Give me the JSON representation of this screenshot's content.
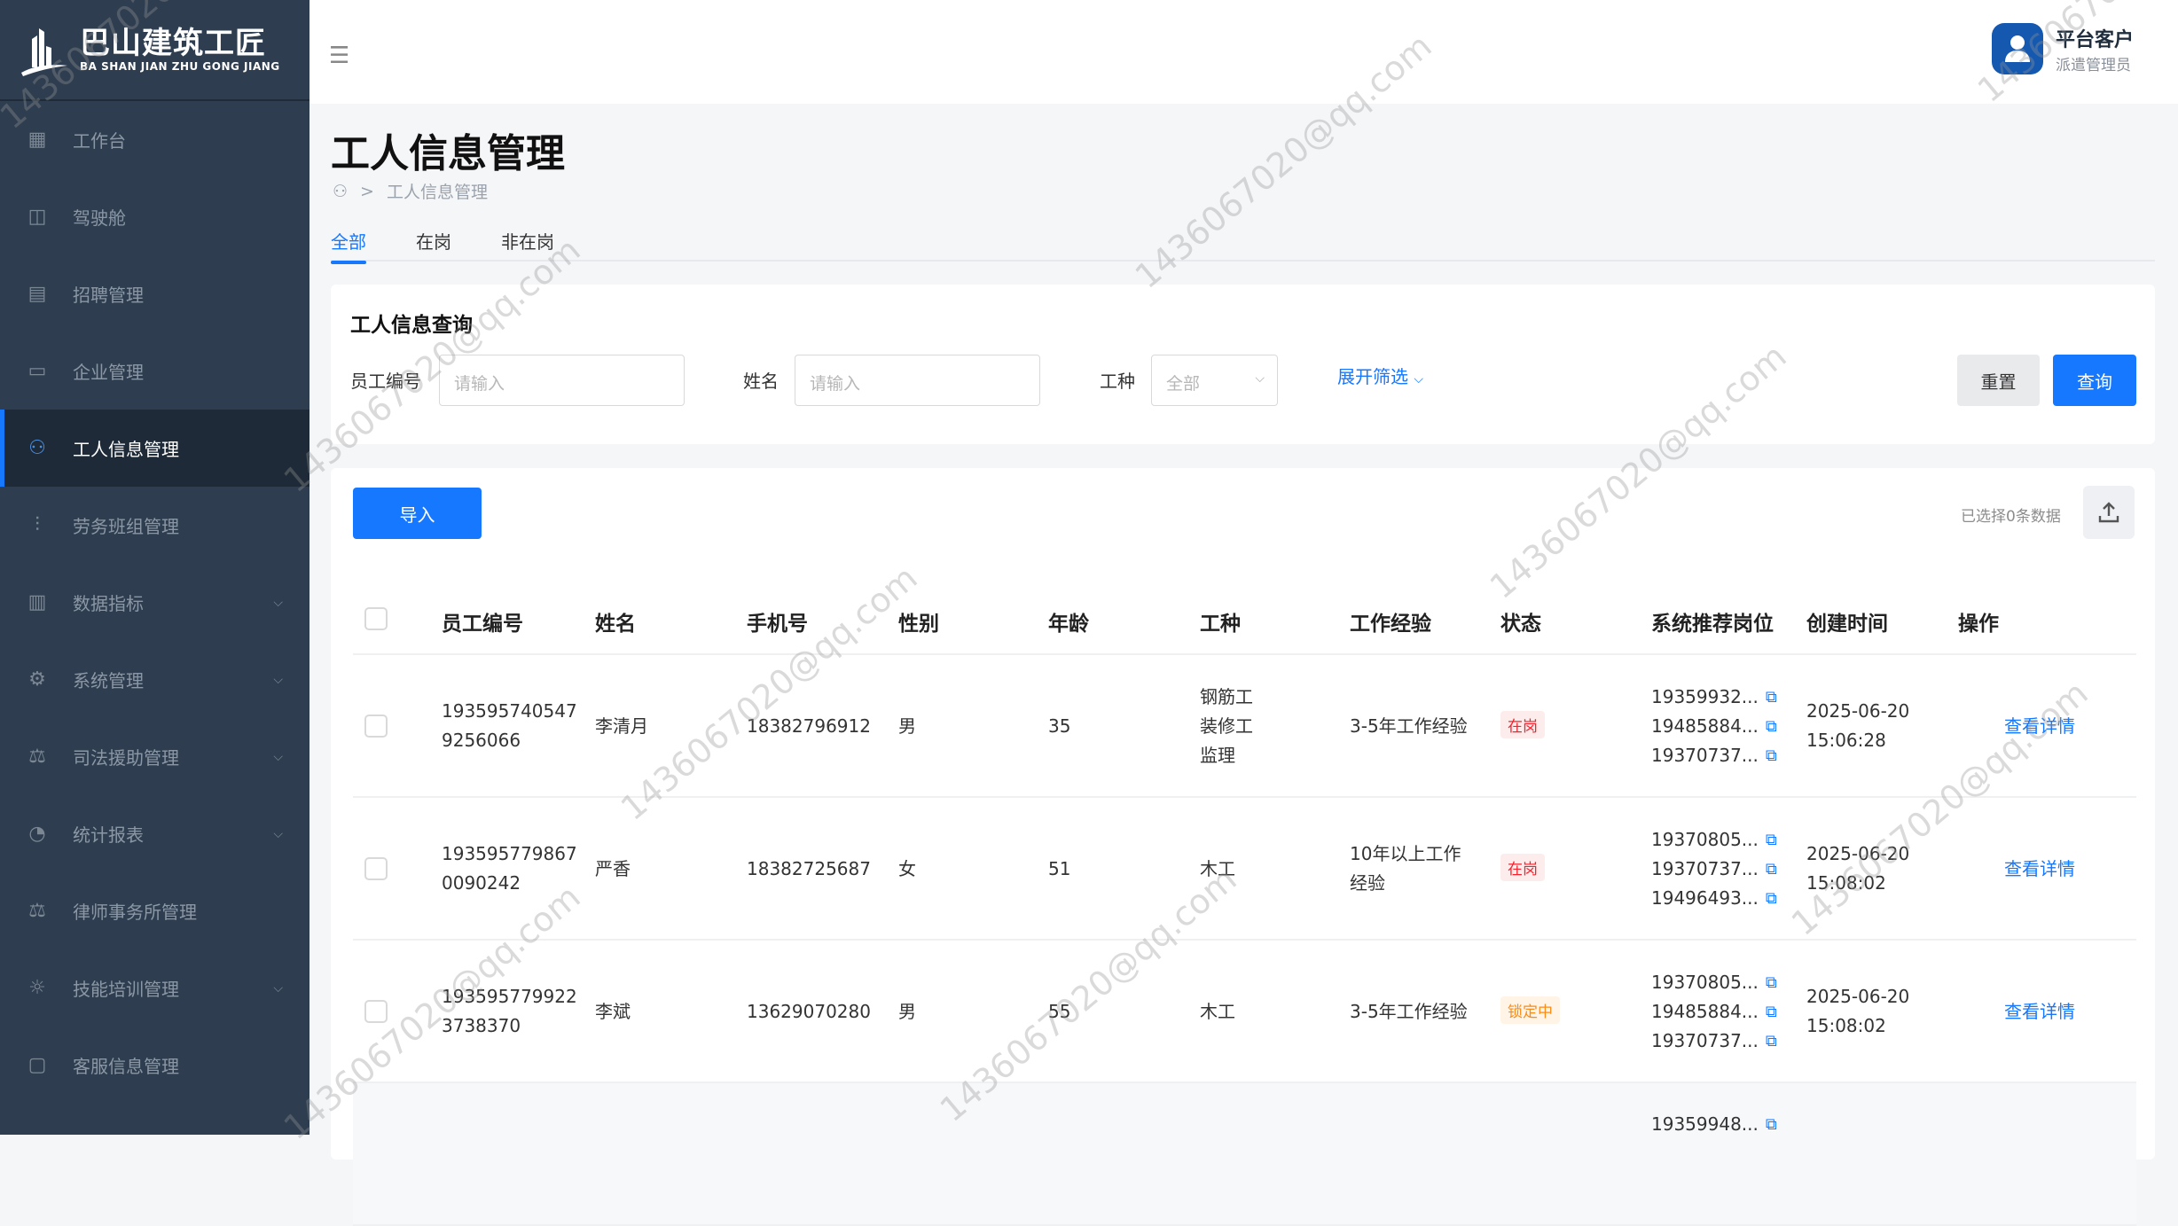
{
  "brand": {
    "name_cn": "巴山建筑工匠",
    "name_en": "BA SHAN JIAN ZHU GONG JIANG"
  },
  "sidebar": {
    "items": [
      {
        "label": "工作台",
        "icon": "grid-icon",
        "expandable": false
      },
      {
        "label": "驾驶舱",
        "icon": "chart-line-icon",
        "expandable": false
      },
      {
        "label": "招聘管理",
        "icon": "recruit-icon",
        "expandable": false
      },
      {
        "label": "企业管理",
        "icon": "folder-icon",
        "expandable": false
      },
      {
        "label": "工人信息管理",
        "icon": "users-icon",
        "expandable": false,
        "active": true
      },
      {
        "label": "劳务班组管理",
        "icon": "sliders-icon",
        "expandable": false
      },
      {
        "label": "数据指标",
        "icon": "bar-chart-icon",
        "expandable": true
      },
      {
        "label": "系统管理",
        "icon": "gear-icon",
        "expandable": true
      },
      {
        "label": "司法援助管理",
        "icon": "scale-icon",
        "expandable": true
      },
      {
        "label": "统计报表",
        "icon": "pie-chart-icon",
        "expandable": true
      },
      {
        "label": "律师事务所管理",
        "icon": "scale-icon",
        "expandable": false
      },
      {
        "label": "技能培训管理",
        "icon": "bulb-icon",
        "expandable": true
      },
      {
        "label": "客服信息管理",
        "icon": "message-icon",
        "expandable": false
      }
    ]
  },
  "header": {
    "user_name": "平台客户",
    "user_role": "派遣管理员"
  },
  "page": {
    "title": "工人信息管理",
    "breadcrumb": [
      "工人信息管理"
    ],
    "breadcrumb_sep": ">"
  },
  "tabs": [
    {
      "label": "全部",
      "active": true
    },
    {
      "label": "在岗"
    },
    {
      "label": "非在岗"
    }
  ],
  "search": {
    "title": "工人信息查询",
    "fields": [
      {
        "label": "员工编号",
        "placeholder": "请输入"
      },
      {
        "label": "姓名",
        "placeholder": "请输入"
      },
      {
        "label": "工种",
        "value": "全部"
      }
    ],
    "expand_label": "展开筛选",
    "reset_label": "重置",
    "query_label": "查询"
  },
  "table": {
    "import_label": "导入",
    "selected_info": "已选择0条数据",
    "columns": [
      "员工编号",
      "姓名",
      "手机号",
      "性别",
      "年龄",
      "工种",
      "工作经验",
      "状态",
      "系统推荐岗位",
      "创建时间",
      "操作"
    ],
    "rows": [
      {
        "id": [
          "193595740547",
          "9256066"
        ],
        "name": "李清月",
        "phone": "18382796912",
        "gender": "男",
        "age": "35",
        "trades": [
          "钢筋工",
          "装修工",
          "监理"
        ],
        "experience": [
          "3-5年工作经验"
        ],
        "status": "在岗",
        "status_type": "active",
        "recommended": [
          "19359932...",
          "19485884...",
          "19370737..."
        ],
        "created": [
          "2025-06-20",
          "15:06:28"
        ],
        "action": "查看详情"
      },
      {
        "id": [
          "193595779867",
          "0090242"
        ],
        "name": "严香",
        "phone": "18382725687",
        "gender": "女",
        "age": "51",
        "trades": [
          "木工"
        ],
        "experience": [
          "10年以上工作",
          "经验"
        ],
        "status": "在岗",
        "status_type": "active",
        "recommended": [
          "19370805...",
          "19370737...",
          "19496493..."
        ],
        "created": [
          "2025-06-20",
          "15:08:02"
        ],
        "action": "查看详情"
      },
      {
        "id": [
          "193595779922",
          "3738370"
        ],
        "name": "李斌",
        "phone": "13629070280",
        "gender": "男",
        "age": "55",
        "trades": [
          "木工"
        ],
        "experience": [
          "3-5年工作经验"
        ],
        "status": "锁定中",
        "status_type": "locked",
        "recommended": [
          "19370805...",
          "19485884...",
          "19370737..."
        ],
        "created": [
          "2025-06-20",
          "15:08:02"
        ],
        "action": "查看详情"
      },
      {
        "id": [],
        "name": "",
        "phone": "",
        "gender": "",
        "age": "",
        "trades": [],
        "experience": [],
        "status": "",
        "status_type": "",
        "recommended": [
          "19359948..."
        ],
        "created": [],
        "action": ""
      }
    ]
  },
  "colors": {
    "sidebar_bg": "#2e3e50",
    "sidebar_active": "#1e2a37",
    "accent": "#1677ff",
    "status_active": "#f5222d",
    "status_locked": "#fa8c16"
  },
  "watermark": "1436067020@qq.com"
}
